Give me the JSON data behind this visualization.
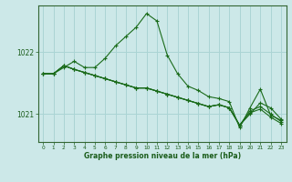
{
  "title": "Graphe pression niveau de la mer (hPa)",
  "background_color": "#cce8e8",
  "grid_color": "#aad4d4",
  "line_color": "#1a6b1a",
  "xlim": [
    -0.5,
    23.5
  ],
  "ylim": [
    1020.55,
    1022.75
  ],
  "yticks": [
    1021,
    1022
  ],
  "xticks": [
    0,
    1,
    2,
    3,
    4,
    5,
    6,
    7,
    8,
    9,
    10,
    11,
    12,
    13,
    14,
    15,
    16,
    17,
    18,
    19,
    20,
    21,
    22,
    23
  ],
  "lines": [
    [
      1021.65,
      1021.65,
      1021.75,
      1021.85,
      1021.75,
      1021.75,
      1021.9,
      1022.1,
      1022.25,
      1022.4,
      1022.62,
      1022.5,
      1021.95,
      1021.65,
      1021.45,
      1021.38,
      1021.28,
      1021.25,
      1021.2,
      1020.78,
      1021.1,
      1021.4,
      1020.98,
      1020.9
    ],
    [
      1021.65,
      1021.65,
      1021.78,
      1021.72,
      1021.67,
      1021.62,
      1021.57,
      1021.52,
      1021.47,
      1021.42,
      1021.42,
      1021.37,
      1021.32,
      1021.27,
      1021.22,
      1021.17,
      1021.12,
      1021.15,
      1021.1,
      1020.82,
      1021.0,
      1021.18,
      1021.1,
      1020.92
    ],
    [
      1021.65,
      1021.65,
      1021.78,
      1021.72,
      1021.67,
      1021.62,
      1021.57,
      1021.52,
      1021.47,
      1021.42,
      1021.42,
      1021.37,
      1021.32,
      1021.27,
      1021.22,
      1021.17,
      1021.12,
      1021.15,
      1021.1,
      1020.82,
      1021.05,
      1021.12,
      1021.0,
      1020.88
    ],
    [
      1021.65,
      1021.65,
      1021.78,
      1021.72,
      1021.67,
      1021.62,
      1021.57,
      1021.52,
      1021.47,
      1021.42,
      1021.42,
      1021.37,
      1021.32,
      1021.27,
      1021.22,
      1021.17,
      1021.12,
      1021.15,
      1021.1,
      1020.82,
      1021.02,
      1021.08,
      1020.95,
      1020.85
    ]
  ]
}
